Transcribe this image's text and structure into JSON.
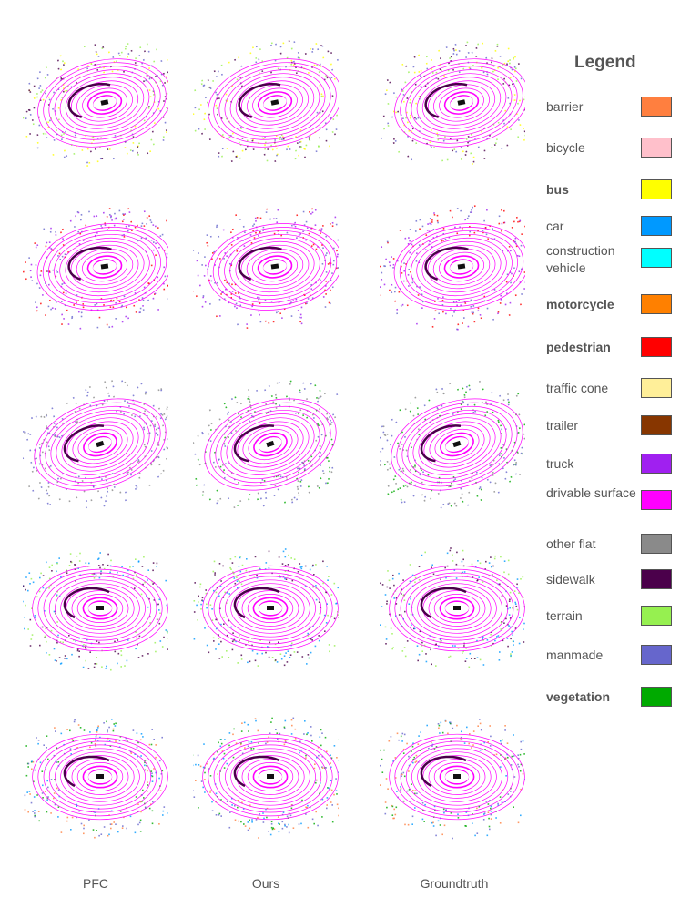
{
  "columns": [
    "PFC",
    "Ours",
    "Groundtruth"
  ],
  "rows": 5,
  "legend": {
    "title": "Legend",
    "items": [
      {
        "label": "barrier",
        "color": "#ff7f3f",
        "bold": false
      },
      {
        "label": "bicycle",
        "color": "#ffc0cb",
        "bold": false
      },
      {
        "label": "bus",
        "color": "#ffff00",
        "bold": true
      },
      {
        "label": "car",
        "color": "#0099ff",
        "bold": false
      },
      {
        "label": "construction vehicle",
        "color": "#00ffff",
        "bold": false
      },
      {
        "label": "motorcycle",
        "color": "#ff8000",
        "bold": true
      },
      {
        "label": "pedestrian",
        "color": "#ff0000",
        "bold": true
      },
      {
        "label": "traffic cone",
        "color": "#ffef99",
        "bold": false
      },
      {
        "label": "trailer",
        "color": "#873600",
        "bold": false
      },
      {
        "label": "truck",
        "color": "#a020f0",
        "bold": false
      },
      {
        "label": "drivable surface",
        "color": "#ff00ff",
        "bold": false
      },
      {
        "label": "other flat",
        "color": "#8a8a8a",
        "bold": false
      },
      {
        "label": "sidewalk",
        "color": "#4b004b",
        "bold": false
      },
      {
        "label": "terrain",
        "color": "#96f050",
        "bold": false
      },
      {
        "label": "manmade",
        "color": "#6666cc",
        "bold": false
      },
      {
        "label": "vegetation",
        "color": "#00aa00",
        "bold": true
      }
    ]
  }
}
